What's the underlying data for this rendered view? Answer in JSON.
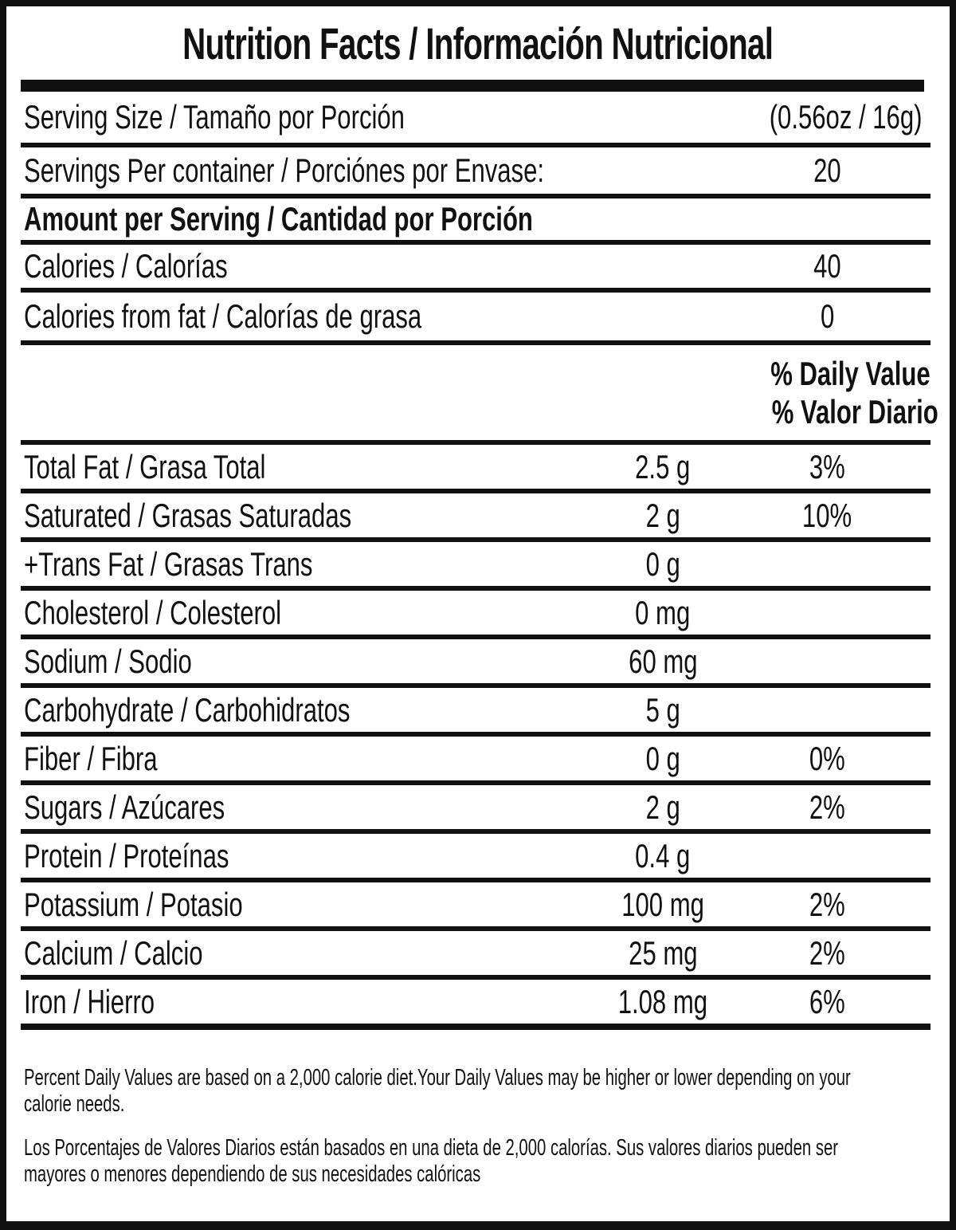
{
  "nutrition": {
    "title": "Nutrition Facts / Información Nutricional",
    "serving": {
      "size_label": "Serving Size / Tamaño por Porción",
      "size_value": "(0.56oz / 16g)",
      "per_container_label": "Servings Per container / Porciónes por Envase:",
      "per_container_value": "20"
    },
    "amount_header": "Amount per Serving / Cantidad por Porción",
    "calories": {
      "label": "Calories / Calorías",
      "value": "40",
      "from_fat_label": "Calories from fat / Calorías de grasa",
      "from_fat_value": "0"
    },
    "daily_value_header": {
      "en": "% Daily Value",
      "es": "% Valor Diario"
    },
    "nutrients": [
      {
        "label": "Total Fat / Grasa Total",
        "amount": "2.5 g",
        "dv": "3%"
      },
      {
        "label": "Saturated / Grasas Saturadas",
        "amount": "2 g",
        "dv": "10%"
      },
      {
        "label": "+Trans Fat / Grasas Trans",
        "amount": "0 g",
        "dv": ""
      },
      {
        "label": "Cholesterol / Colesterol",
        "amount": "0 mg",
        "dv": ""
      },
      {
        "label": "Sodium / Sodio",
        "amount": "60 mg",
        "dv": ""
      },
      {
        "label": "Carbohydrate / Carbohidratos",
        "amount": "5 g",
        "dv": ""
      },
      {
        "label": "Fiber / Fibra",
        "amount": "0 g",
        "dv": "0%"
      },
      {
        "label": "Sugars / Azúcares",
        "amount": "2 g",
        "dv": "2%"
      },
      {
        "label": "Protein / Proteínas",
        "amount": "0.4 g",
        "dv": ""
      },
      {
        "label": "Potassium / Potasio",
        "amount": "100 mg",
        "dv": "2%"
      },
      {
        "label": "Calcium / Calcio",
        "amount": "25 mg",
        "dv": "2%"
      },
      {
        "label": "Iron / Hierro",
        "amount": "1.08 mg",
        "dv": "6%"
      }
    ],
    "footnotes": {
      "en_lines": [
        "Percent Daily Values are based on a 2,000 calorie diet.Your Daily Values may be higher or lower depending on your",
        "calorie needs."
      ],
      "es_lines": [
        "Los Porcentajes de Valores Diarios están basados en una dieta de 2,000 calorías. Sus valores diarios pueden ser",
        "mayores o menores dependiendo de sus necesidades calóricas"
      ]
    },
    "colors": {
      "ink": "#111111",
      "background": "#ffffff"
    }
  }
}
